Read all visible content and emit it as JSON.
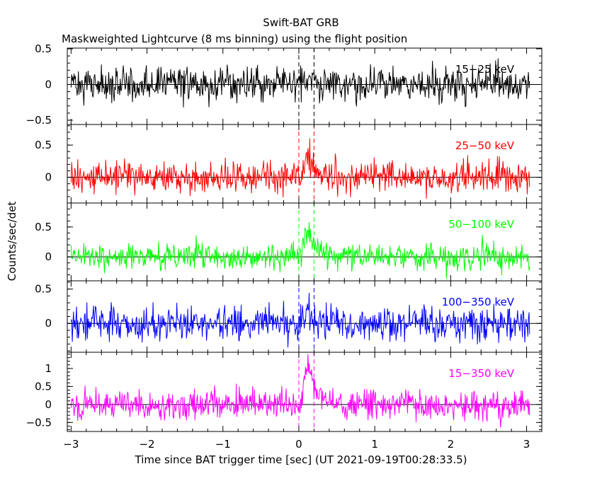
{
  "chart_data": {
    "type": "line",
    "title": "Swift-BAT GRB",
    "subtitle": "Maskweighted Lightcurve (8 ms binning) using the flight position",
    "xlabel": "Time since BAT trigger time [sec] (UT 2021-09-19T00:28:33.5)",
    "ylabel": "Counts/sec/det",
    "xlim": [
      -3.05,
      3.2
    ],
    "x_ticks": [
      -3,
      -2,
      -1,
      0,
      1,
      2,
      3
    ],
    "x_tick_labels": [
      "−3",
      "−2",
      "−1",
      "0",
      "1",
      "2",
      "3"
    ],
    "bin_seconds": 0.008,
    "series_x_range": [
      -3.0,
      3.04
    ],
    "burst_markers": [
      0.0,
      0.2
    ],
    "panels": [
      {
        "name": "15-25 keV",
        "label": "15−25 keV",
        "color": "#000000",
        "ylim": [
          -0.56,
          0.51
        ],
        "y_ticks": [
          -0.5,
          0,
          0.5
        ],
        "y_tick_labels": [
          "−0.5",
          "0",
          "0.5"
        ],
        "noise_sigma": 0.12,
        "peak": 0.12
      },
      {
        "name": "25-50 keV",
        "label": "25−50 keV",
        "color": "#ff0000",
        "ylim": [
          -0.4,
          0.82
        ],
        "y_ticks": [
          0,
          0.5
        ],
        "y_tick_labels": [
          "0",
          "0.5"
        ],
        "noise_sigma": 0.12,
        "peak": 0.35
      },
      {
        "name": "50-100 keV",
        "label": "50−100 keV",
        "color": "#00ff00",
        "ylim": [
          -0.4,
          0.9
        ],
        "y_ticks": [
          0,
          0.5
        ],
        "y_tick_labels": [
          "0",
          "0.5"
        ],
        "noise_sigma": 0.11,
        "peak": 0.4
      },
      {
        "name": "100-350 keV",
        "label": "100−350 keV",
        "color": "#0000ff",
        "ylim": [
          -0.42,
          0.62
        ],
        "y_ticks": [
          0,
          0.5
        ],
        "y_tick_labels": [
          "0",
          "0.5"
        ],
        "noise_sigma": 0.12,
        "peak": 0.18
      },
      {
        "name": "15-350 keV",
        "label": "15−350 keV",
        "color": "#ff00ff",
        "ylim": [
          -0.75,
          1.45
        ],
        "y_ticks": [
          -0.5,
          0,
          0.5,
          1
        ],
        "y_tick_labels": [
          "−0.5",
          "0",
          "0.5",
          "1"
        ],
        "noise_sigma": 0.2,
        "peak": 1.1
      }
    ]
  }
}
